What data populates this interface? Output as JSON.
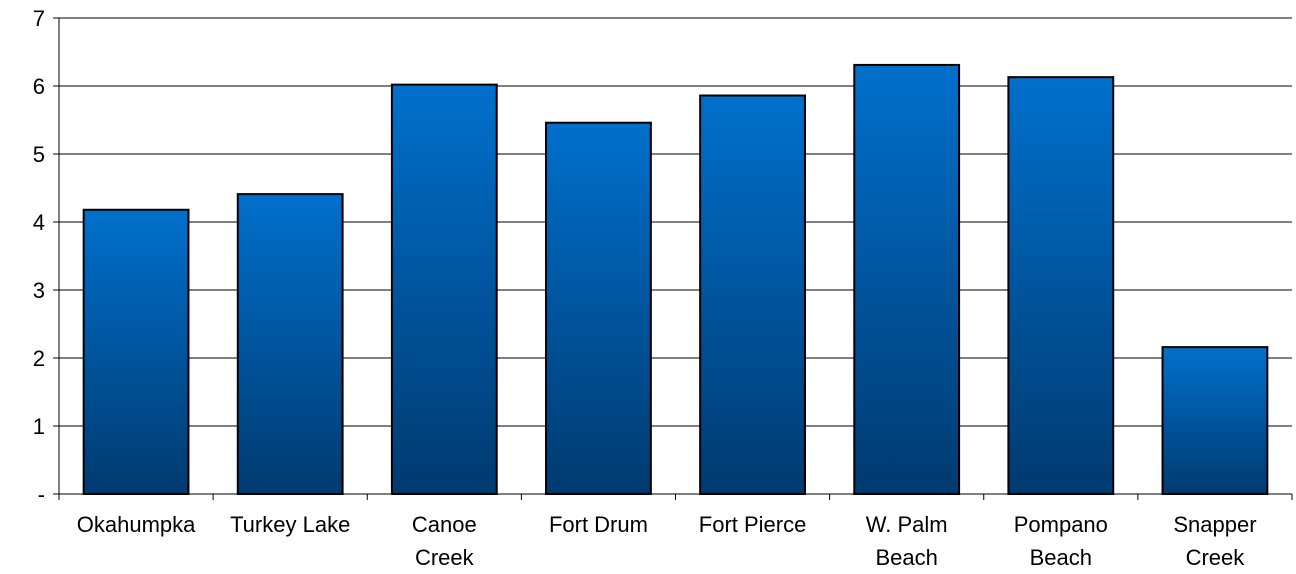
{
  "chart_data": {
    "type": "bar",
    "title": "",
    "xlabel": "",
    "ylabel": "",
    "categories": [
      [
        "Okahumpka"
      ],
      [
        "Turkey Lake"
      ],
      [
        "Canoe",
        "Creek"
      ],
      [
        "Fort Drum"
      ],
      [
        "Fort Pierce"
      ],
      [
        "W. Palm",
        "Beach"
      ],
      [
        "Pompano",
        "Beach"
      ],
      [
        "Snapper",
        "Creek"
      ]
    ],
    "values": [
      4.18,
      4.41,
      6.02,
      5.46,
      5.86,
      6.31,
      6.13,
      2.16
    ],
    "ylim": [
      0,
      7
    ],
    "yticks": [
      {
        "value": 0,
        "label": "-"
      },
      {
        "value": 1,
        "label": "1"
      },
      {
        "value": 2,
        "label": "2"
      },
      {
        "value": 3,
        "label": "3"
      },
      {
        "value": 4,
        "label": "4"
      },
      {
        "value": 5,
        "label": "5"
      },
      {
        "value": 6,
        "label": "6"
      },
      {
        "value": 7,
        "label": "7"
      }
    ],
    "grid": true,
    "legend": "none",
    "colors": {
      "bar_top": "#0070cc",
      "bar_bottom": "#003a70",
      "bar_stroke": "#000000",
      "grid": "#000000"
    }
  }
}
